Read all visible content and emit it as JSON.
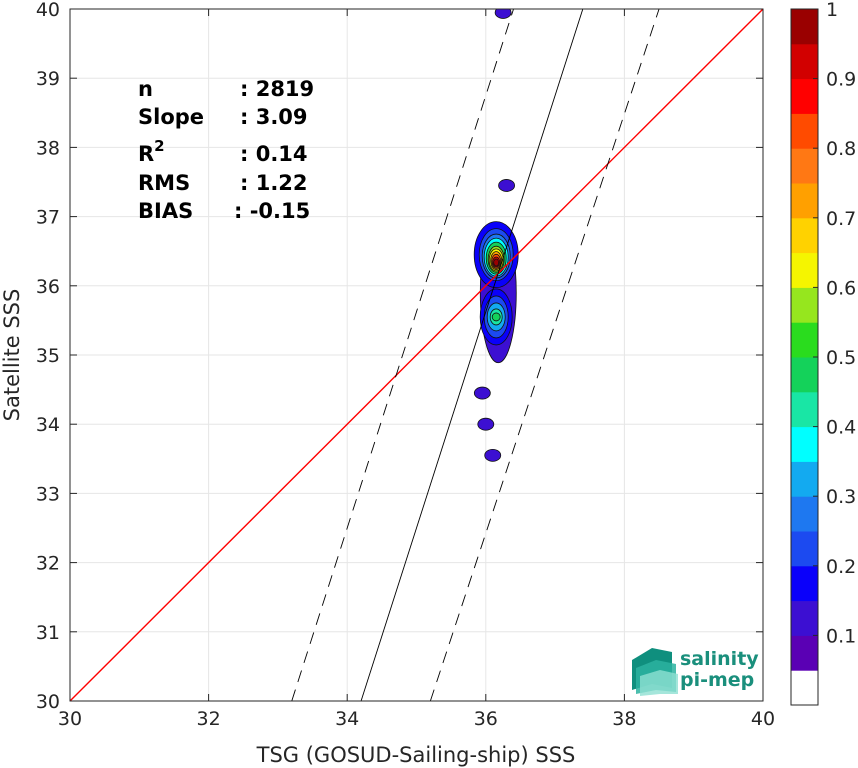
{
  "chart_data": {
    "type": "heatmap",
    "xlabel": "TSG (GOSUD-Sailing-ship) SSS",
    "ylabel": "Satellite SSS",
    "xlim": [
      30,
      40
    ],
    "ylim": [
      30,
      40
    ],
    "xticks": [
      "30",
      "32",
      "34",
      "36",
      "38",
      "40"
    ],
    "yticks": [
      "30",
      "31",
      "32",
      "33",
      "34",
      "35",
      "36",
      "37",
      "38",
      "39",
      "40"
    ],
    "grid": true,
    "stats": [
      {
        "label": "n",
        "value": ": 2819"
      },
      {
        "label": "Slope",
        "value": ": 3.09"
      },
      {
        "label": "R",
        "sup": "2",
        "value": ": 0.14"
      },
      {
        "label": "RMS",
        "value": ": 1.22"
      },
      {
        "label": "BIAS",
        "value": ": -0.15"
      }
    ],
    "identity_line": {
      "color": "#ff0000",
      "from": [
        30,
        30
      ],
      "to": [
        40,
        40
      ]
    },
    "regression_line": {
      "from": [
        34.2,
        30
      ],
      "to": [
        37.4,
        40
      ]
    },
    "confidence_lines": [
      {
        "from": [
          33.2,
          30
        ],
        "to": [
          36.4,
          40
        ]
      },
      {
        "from": [
          35.2,
          30
        ],
        "to": [
          38.5,
          40
        ]
      }
    ],
    "density_peaks": [
      {
        "x": 36.15,
        "y": 36.45,
        "value": 1.0
      },
      {
        "x": 36.15,
        "y": 35.55,
        "value": 0.45
      },
      {
        "x": 36.3,
        "y": 37.45,
        "value": 0.08
      },
      {
        "x": 36.25,
        "y": 39.95,
        "value": 0.08
      },
      {
        "x": 35.95,
        "y": 34.45,
        "value": 0.08
      },
      {
        "x": 36.0,
        "y": 34.0,
        "value": 0.08
      },
      {
        "x": 36.1,
        "y": 33.55,
        "value": 0.08
      }
    ],
    "colorbar": {
      "ticks": [
        "0.1",
        "0.2",
        "0.3",
        "0.4",
        "0.5",
        "0.6",
        "0.7",
        "0.8",
        "0.9",
        "1"
      ],
      "colors": [
        "#ffffff",
        "#5a00b4",
        "#3c0fd2",
        "#0a00fa",
        "#1c4af0",
        "#1e78f0",
        "#13aaf0",
        "#00ffff",
        "#19e6a5",
        "#14d25a",
        "#2adc1e",
        "#96e61e",
        "#f5f500",
        "#ffd200",
        "#ffa000",
        "#ff7814",
        "#ff4b00",
        "#ff0000",
        "#d20000",
        "#9a0000"
      ]
    }
  },
  "logo": {
    "line1": "salinity",
    "line2": "pi-mep"
  }
}
